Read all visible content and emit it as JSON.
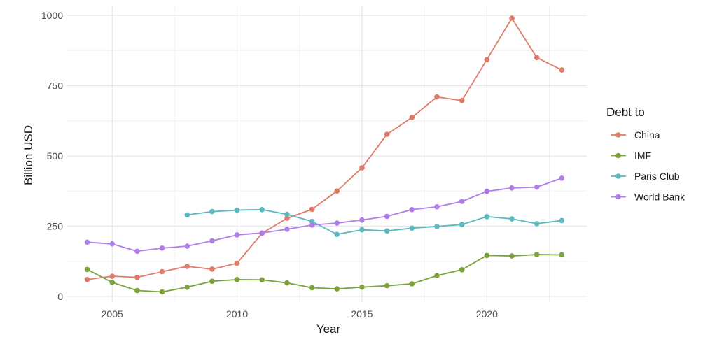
{
  "chart_data": {
    "type": "line",
    "xlabel": "Year",
    "ylabel": "Billion USD",
    "xlim": [
      2003.2,
      2024.0
    ],
    "ylim": [
      -20,
      1035
    ],
    "x_ticks": [
      2005,
      2010,
      2015,
      2020
    ],
    "y_ticks": [
      0,
      250,
      500,
      750,
      1000
    ],
    "grid": true,
    "legend": {
      "title": "Debt to",
      "placement": "right"
    },
    "series": [
      {
        "name": "China",
        "color": "#e07b6a",
        "points": [
          [
            2004,
            60
          ],
          [
            2005,
            72
          ],
          [
            2006,
            68
          ],
          [
            2007,
            88
          ],
          [
            2008,
            107
          ],
          [
            2009,
            97
          ],
          [
            2010,
            118
          ],
          [
            2011,
            225
          ],
          [
            2012,
            278
          ],
          [
            2013,
            310
          ],
          [
            2014,
            375
          ],
          [
            2015,
            458
          ],
          [
            2016,
            577
          ],
          [
            2017,
            637
          ],
          [
            2018,
            710
          ],
          [
            2019,
            697
          ],
          [
            2020,
            843
          ],
          [
            2021,
            990
          ],
          [
            2022,
            850
          ],
          [
            2023,
            806
          ]
        ]
      },
      {
        "name": "IMF",
        "color": "#7ca23c",
        "points": [
          [
            2004,
            96
          ],
          [
            2005,
            50
          ],
          [
            2006,
            21
          ],
          [
            2007,
            16
          ],
          [
            2008,
            33
          ],
          [
            2009,
            54
          ],
          [
            2010,
            60
          ],
          [
            2011,
            59
          ],
          [
            2012,
            48
          ],
          [
            2013,
            31
          ],
          [
            2014,
            27
          ],
          [
            2015,
            33
          ],
          [
            2016,
            38
          ],
          [
            2017,
            45
          ],
          [
            2018,
            74
          ],
          [
            2019,
            95
          ],
          [
            2020,
            146
          ],
          [
            2021,
            144
          ],
          [
            2022,
            149
          ],
          [
            2023,
            148
          ]
        ]
      },
      {
        "name": "Paris Club",
        "color": "#5bb8be",
        "points": [
          [
            2008,
            290
          ],
          [
            2009,
            302
          ],
          [
            2010,
            307
          ],
          [
            2011,
            309
          ],
          [
            2012,
            292
          ],
          [
            2013,
            267
          ],
          [
            2014,
            221
          ],
          [
            2015,
            237
          ],
          [
            2016,
            233
          ],
          [
            2017,
            243
          ],
          [
            2018,
            249
          ],
          [
            2019,
            256
          ],
          [
            2020,
            284
          ],
          [
            2021,
            276
          ],
          [
            2022,
            259
          ],
          [
            2023,
            270
          ]
        ]
      },
      {
        "name": "World Bank",
        "color": "#b07ee8",
        "points": [
          [
            2004,
            193
          ],
          [
            2005,
            187
          ],
          [
            2006,
            161
          ],
          [
            2007,
            172
          ],
          [
            2008,
            179
          ],
          [
            2009,
            198
          ],
          [
            2010,
            219
          ],
          [
            2011,
            226
          ],
          [
            2012,
            239
          ],
          [
            2013,
            254
          ],
          [
            2014,
            261
          ],
          [
            2015,
            272
          ],
          [
            2016,
            285
          ],
          [
            2017,
            309
          ],
          [
            2018,
            319
          ],
          [
            2019,
            338
          ],
          [
            2020,
            374
          ],
          [
            2021,
            386
          ],
          [
            2022,
            389
          ],
          [
            2023,
            421
          ]
        ]
      }
    ]
  }
}
